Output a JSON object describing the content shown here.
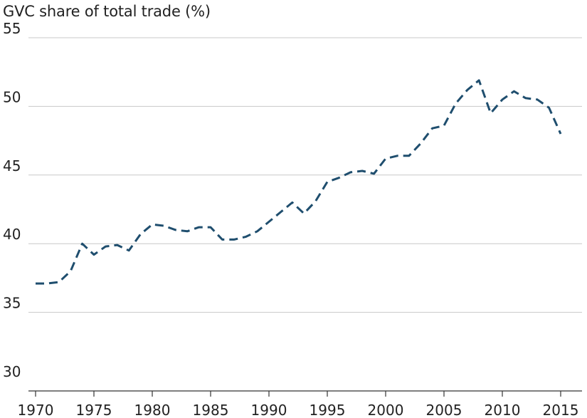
{
  "chart_data": {
    "type": "line",
    "title": "GVC share of total trade (%)",
    "xlabel": "",
    "ylabel": "",
    "xlim": [
      1970,
      2015
    ],
    "ylim": [
      30,
      55
    ],
    "x_ticks": [
      1970,
      1975,
      1980,
      1985,
      1990,
      1995,
      2000,
      2005,
      2010,
      2015
    ],
    "y_ticks": [
      30,
      35,
      40,
      45,
      50,
      55
    ],
    "grid": "horizontal",
    "line_style": "dashed",
    "series": [
      {
        "color": "#1f4e6e",
        "x": [
          1970,
          1971,
          1972,
          1973,
          1974,
          1975,
          1976,
          1977,
          1978,
          1979,
          1980,
          1981,
          1982,
          1983,
          1984,
          1985,
          1986,
          1987,
          1988,
          1989,
          1990,
          1991,
          1992,
          1993,
          1994,
          1995,
          1996,
          1997,
          1998,
          1999,
          2000,
          2001,
          2002,
          2003,
          2004,
          2005,
          2006,
          2007,
          2008,
          2009,
          2010,
          2011,
          2012,
          2013,
          2014,
          2015
        ],
        "values": [
          37.1,
          37.1,
          37.2,
          38.0,
          40.0,
          39.2,
          39.8,
          39.9,
          39.5,
          40.7,
          41.4,
          41.3,
          41.0,
          40.9,
          41.2,
          41.2,
          40.3,
          40.3,
          40.5,
          40.9,
          41.6,
          42.3,
          43.0,
          42.2,
          43.1,
          44.5,
          44.8,
          45.2,
          45.3,
          45.1,
          46.2,
          46.4,
          46.4,
          47.3,
          48.4,
          48.6,
          50.2,
          51.2,
          51.9,
          49.5,
          50.5,
          51.1,
          50.6,
          50.5,
          49.9,
          48.0
        ]
      }
    ]
  }
}
